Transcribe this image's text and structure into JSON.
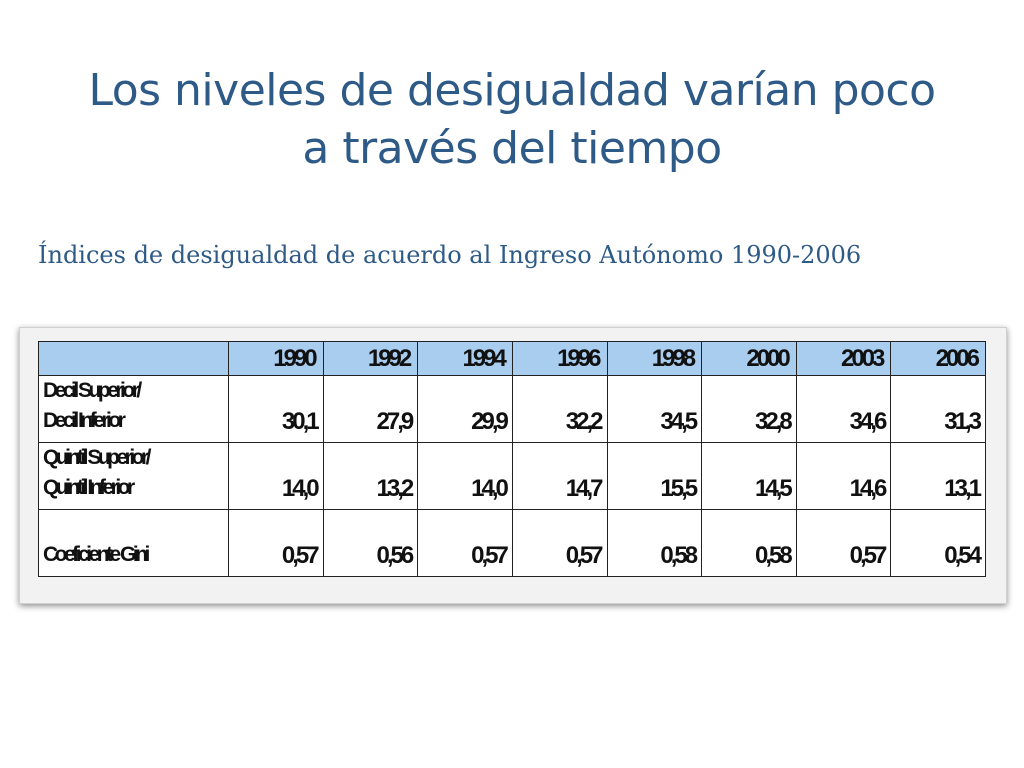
{
  "slide": {
    "title_line1": "Los niveles de desigualdad varían poco",
    "title_line2": "a través del tiempo",
    "subtitle": "Índices de desigualdad de acuerdo al Ingreso Autónomo 1990-2006"
  },
  "table": {
    "header_corner": "",
    "years": [
      "1990",
      "1992",
      "1994",
      "1996",
      "1998",
      "2000",
      "2003",
      "2006"
    ],
    "rows": [
      {
        "label_line1": "Decil Superior/",
        "label_line2": "Decil Inferior",
        "values": [
          "30,1",
          "27,9",
          "29,9",
          "32,2",
          "34,5",
          "32,8",
          "34,6",
          "31,3"
        ]
      },
      {
        "label_line1": "Quintil Superior/",
        "label_line2": "Quintil Inferior",
        "values": [
          "14,0",
          "13,2",
          "14,0",
          "14,7",
          "15,5",
          "14,5",
          "14,6",
          "13,1"
        ]
      },
      {
        "label_line1": "",
        "label_line2": "Coeficiente Gini",
        "values": [
          "0,57",
          "0,56",
          "0,57",
          "0,57",
          "0,58",
          "0,58",
          "0,57",
          "0,54"
        ]
      }
    ],
    "header_color": "#a9cdef"
  }
}
